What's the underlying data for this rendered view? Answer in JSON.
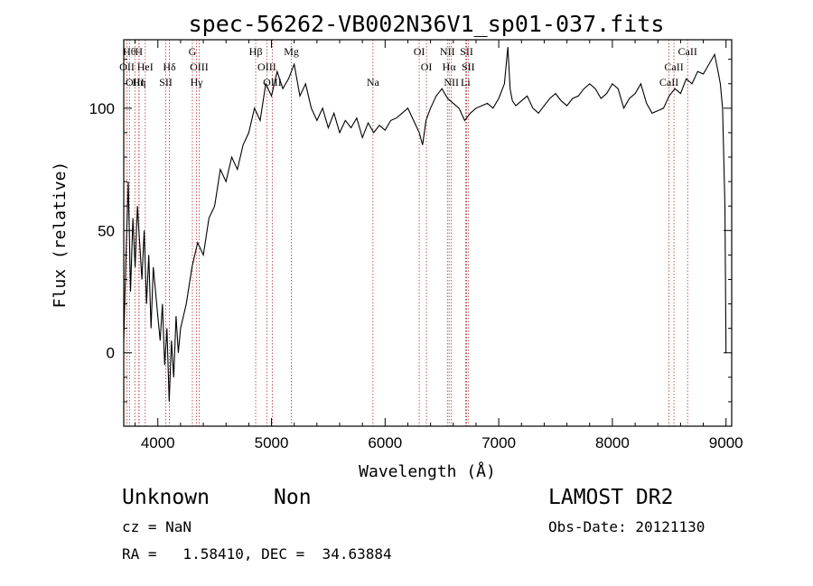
{
  "chart_data": {
    "type": "line",
    "title": "spec-56262-VB002N36V1_sp01-037.fits",
    "xlabel": "Wavelength (Å)",
    "ylabel": "Flux (relative)",
    "xlim": [
      3700,
      9050
    ],
    "ylim": [
      -30,
      128
    ],
    "xticks": [
      4000,
      5000,
      6000,
      7000,
      8000,
      9000
    ],
    "yticks": [
      0,
      50,
      100
    ],
    "grid": false,
    "line_color": "#000000",
    "marker_color": "#b03030",
    "series": [
      {
        "x": [
          3700,
          3720,
          3740,
          3760,
          3780,
          3800,
          3820,
          3840,
          3860,
          3880,
          3900,
          3920,
          3940,
          3960,
          3980,
          4000,
          4020,
          4040,
          4060,
          4080,
          4100,
          4120,
          4140,
          4160,
          4180,
          4200,
          4250,
          4300,
          4350,
          4400,
          4450,
          4500,
          4550,
          4600,
          4650,
          4700,
          4750,
          4800,
          4850,
          4900,
          4950,
          5000,
          5050,
          5100,
          5150,
          5200,
          5250,
          5300,
          5350,
          5400,
          5450,
          5500,
          5550,
          5600,
          5650,
          5700,
          5750,
          5800,
          5850,
          5900,
          5950,
          6000,
          6050,
          6100,
          6150,
          6200,
          6250,
          6300,
          6330,
          6360,
          6400,
          6450,
          6500,
          6550,
          6600,
          6650,
          6700,
          6750,
          6800,
          6850,
          6900,
          6950,
          7000,
          7050,
          7080,
          7100,
          7120,
          7150,
          7200,
          7250,
          7300,
          7350,
          7400,
          7450,
          7500,
          7550,
          7600,
          7650,
          7700,
          7750,
          7800,
          7850,
          7900,
          7950,
          8000,
          8050,
          8100,
          8150,
          8200,
          8250,
          8300,
          8350,
          8400,
          8450,
          8500,
          8550,
          8600,
          8650,
          8700,
          8750,
          8800,
          8850,
          8900,
          8930,
          8950,
          8970,
          8990,
          9000
        ],
        "y": [
          5,
          40,
          70,
          25,
          55,
          35,
          60,
          45,
          30,
          50,
          20,
          40,
          10,
          35,
          25,
          15,
          5,
          20,
          -5,
          10,
          -20,
          5,
          -10,
          15,
          0,
          10,
          20,
          35,
          45,
          40,
          55,
          60,
          75,
          70,
          80,
          75,
          85,
          90,
          100,
          95,
          110,
          105,
          115,
          108,
          112,
          118,
          105,
          110,
          100,
          95,
          100,
          92,
          98,
          90,
          95,
          92,
          96,
          88,
          94,
          90,
          93,
          91,
          95,
          96,
          98,
          100,
          95,
          90,
          85,
          95,
          100,
          105,
          108,
          104,
          102,
          100,
          95,
          98,
          100,
          101,
          102,
          100,
          104,
          110,
          125,
          108,
          103,
          101,
          103,
          105,
          100,
          98,
          101,
          104,
          106,
          103,
          101,
          104,
          105,
          108,
          110,
          108,
          104,
          106,
          110,
          108,
          100,
          104,
          106,
          110,
          102,
          98,
          99,
          100,
          105,
          108,
          106,
          112,
          110,
          115,
          114,
          118,
          122,
          115,
          110,
          100,
          60,
          0
        ]
      }
    ],
    "lines": [
      {
        "label": "Hθ",
        "wave": 3750,
        "row": 0
      },
      {
        "label": "H",
        "wave": 3833,
        "row": 0
      },
      {
        "label": "OII",
        "wave": 3728,
        "row": 1
      },
      {
        "label": "HeI",
        "wave": 3889,
        "row": 1
      },
      {
        "label": "Hδ",
        "wave": 4102,
        "row": 1
      },
      {
        "label": "OIII",
        "wave": 3798,
        "row": 2
      },
      {
        "label": "Hη",
        "wave": 3835,
        "row": 2
      },
      {
        "label": "SII",
        "wave": 4070,
        "row": 2
      },
      {
        "label": "G",
        "wave": 4304,
        "row": 0
      },
      {
        "label": "OIII",
        "wave": 4363,
        "row": 1
      },
      {
        "label": "Hγ",
        "wave": 4341,
        "row": 2
      },
      {
        "label": "Hβ",
        "wave": 4861,
        "row": 0
      },
      {
        "label": "OIII",
        "wave": 4959,
        "row": 1
      },
      {
        "label": "OIII",
        "wave": 5007,
        "row": 2
      },
      {
        "label": "Mg",
        "wave": 5175,
        "row": 0
      },
      {
        "label": "Na",
        "wave": 5893,
        "row": 2
      },
      {
        "label": "OI",
        "wave": 6300,
        "row": 0
      },
      {
        "label": "OI",
        "wave": 6364,
        "row": 1
      },
      {
        "label": "NII",
        "wave": 6548,
        "row": 0
      },
      {
        "label": "SII",
        "wave": 6717,
        "row": 0
      },
      {
        "label": "Hα",
        "wave": 6563,
        "row": 1
      },
      {
        "label": "SII",
        "wave": 6731,
        "row": 1
      },
      {
        "label": "NII",
        "wave": 6583,
        "row": 2
      },
      {
        "label": "Li",
        "wave": 6708,
        "row": 2
      },
      {
        "label": "CaII",
        "wave": 8662,
        "row": 0
      },
      {
        "label": "CaII",
        "wave": 8542,
        "row": 1
      },
      {
        "label": "CaII",
        "wave": 8498,
        "row": 2
      }
    ]
  },
  "info": {
    "class": "Unknown",
    "subclass": "Non",
    "survey": "LAMOST DR2",
    "cz": "cz = NaN",
    "obsdate": "Obs-Date: 20121130",
    "radec": "RA =   1.58410, DEC =  34.63884"
  }
}
